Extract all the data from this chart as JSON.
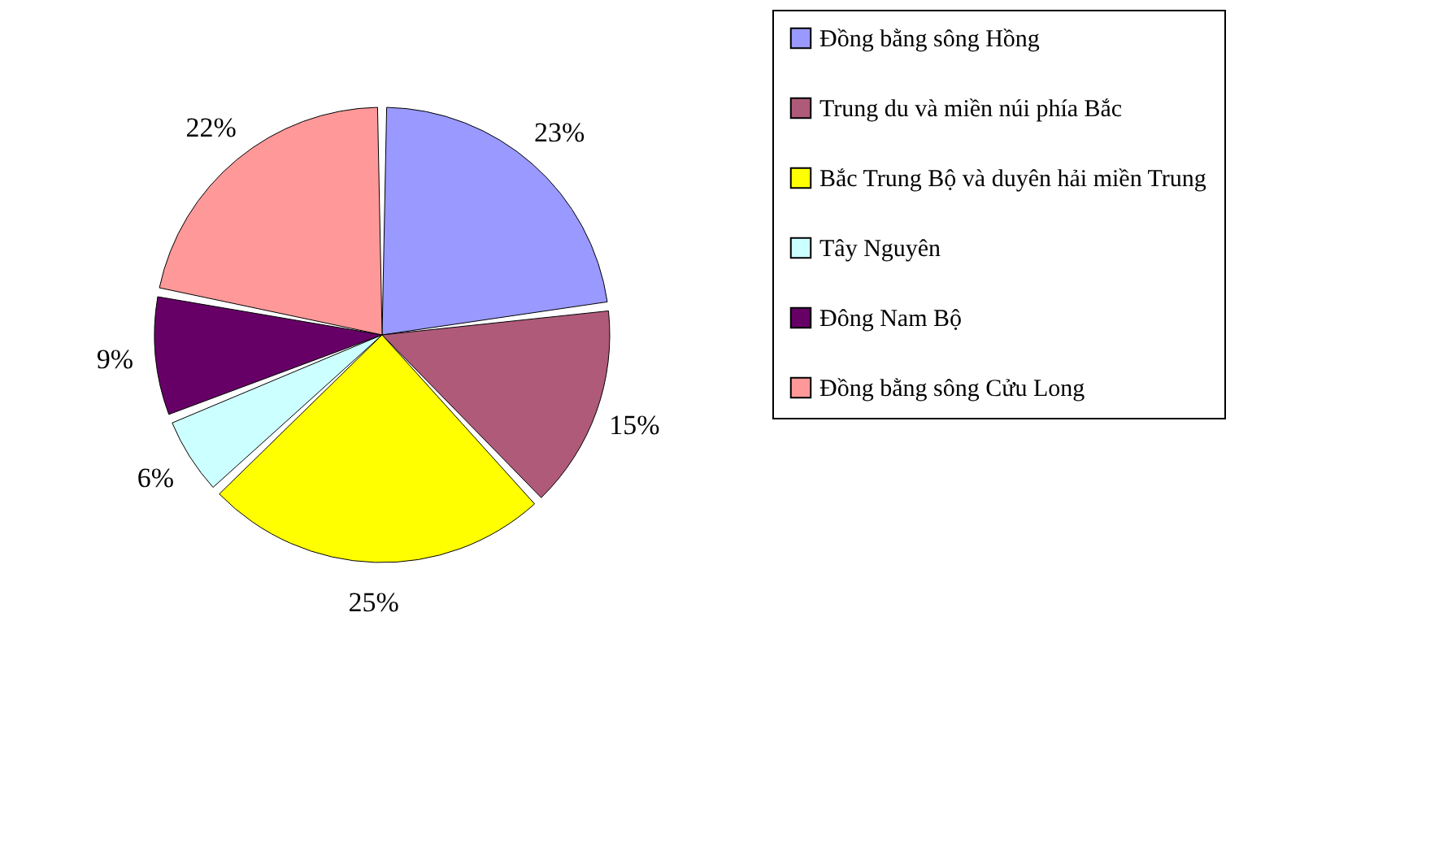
{
  "chart_data": {
    "type": "pie",
    "categories": [
      "Đồng bằng sông Hồng",
      "Trung du và miền núi phía Bắc",
      "Bắc Trung Bộ và duyên hải miền Trung",
      "Tây Nguyên",
      "Đông Nam Bộ",
      "Đồng bằng sông Cửu Long"
    ],
    "values": [
      23,
      15,
      25,
      6,
      9,
      22
    ],
    "value_labels": [
      "23%",
      "15%",
      "25%",
      "6%",
      "9%",
      "22%"
    ],
    "colors": [
      "#9999ff",
      "#b05a7a",
      "#ffff00",
      "#ccffff",
      "#660066",
      "#ff9999"
    ],
    "legend": "right"
  }
}
